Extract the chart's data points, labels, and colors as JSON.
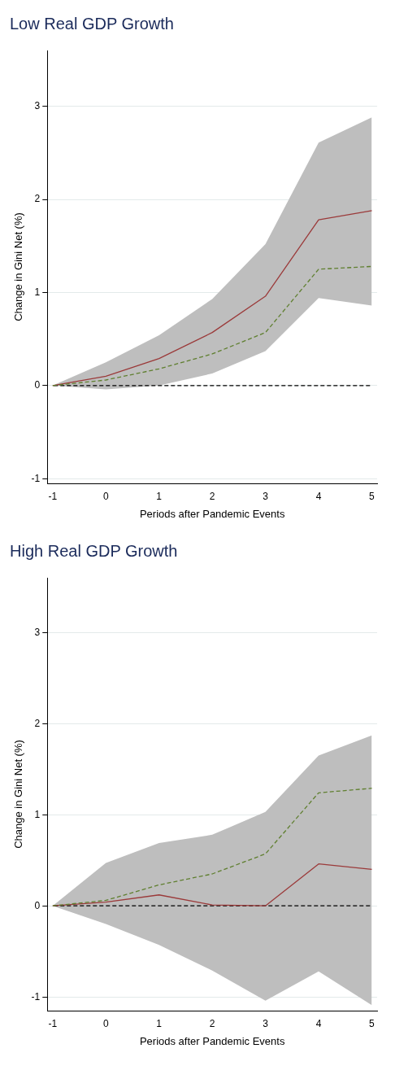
{
  "chart_data": [
    {
      "type": "line",
      "title": "Low Real GDP Growth",
      "xlabel": "Periods after Pandemic Events",
      "ylabel": "Change in Gini Net (%)",
      "x": [
        -1,
        0,
        1,
        2,
        3,
        4,
        5
      ],
      "series": [
        {
          "color": "#9b3a3a",
          "line_style": "solid",
          "values": [
            0,
            0.1,
            0.29,
            0.57,
            0.96,
            1.78,
            1.88
          ],
          "lower": [
            0,
            -0.04,
            0,
            0.13,
            0.37,
            0.94,
            0.86
          ],
          "upper": [
            0,
            0.25,
            0.54,
            0.93,
            1.52,
            2.61,
            2.88
          ]
        },
        {
          "color": "#5f7f2f",
          "line_style": "dashed",
          "values": [
            0,
            0.06,
            0.18,
            0.34,
            0.57,
            1.25,
            1.28
          ]
        }
      ],
      "ref_lines": [
        {
          "axis": "y",
          "value": 0,
          "color": "#000000",
          "line_style": "dashed"
        }
      ],
      "xlim": [
        -1.1,
        5.1
      ],
      "xticks": [
        -1,
        0,
        1,
        2,
        3,
        4,
        5
      ],
      "ylim": [
        -1.05,
        3.6
      ],
      "yticks": [
        -1,
        0,
        1,
        2,
        3
      ],
      "grid": "y",
      "legend": false,
      "marker": "none"
    },
    {
      "type": "line",
      "title": "High Real GDP Growth",
      "xlabel": "Periods after Pandemic Events",
      "ylabel": "Change in Gini Net (%)",
      "x": [
        -1,
        0,
        1,
        2,
        3,
        4,
        5
      ],
      "series": [
        {
          "color": "#9b3a3a",
          "line_style": "solid",
          "values": [
            0,
            0.04,
            0.12,
            0.01,
            0,
            0.46,
            0.4
          ],
          "lower": [
            0,
            -0.2,
            -0.43,
            -0.71,
            -1.04,
            -0.72,
            -1.09
          ],
          "upper": [
            0,
            0.47,
            0.69,
            0.78,
            1.03,
            1.65,
            1.87
          ]
        },
        {
          "color": "#5f7f2f",
          "line_style": "dashed",
          "values": [
            0,
            0.06,
            0.23,
            0.35,
            0.57,
            1.24,
            1.29
          ]
        }
      ],
      "ref_lines": [
        {
          "axis": "y",
          "value": 0,
          "color": "#000000",
          "line_style": "dashed"
        }
      ],
      "xlim": [
        -1.1,
        5.1
      ],
      "xticks": [
        -1,
        0,
        1,
        2,
        3,
        4,
        5
      ],
      "ylim": [
        -1.15,
        3.6
      ],
      "yticks": [
        -1,
        0,
        1,
        2,
        3
      ],
      "grid": "y",
      "legend": false,
      "marker": "none"
    }
  ]
}
